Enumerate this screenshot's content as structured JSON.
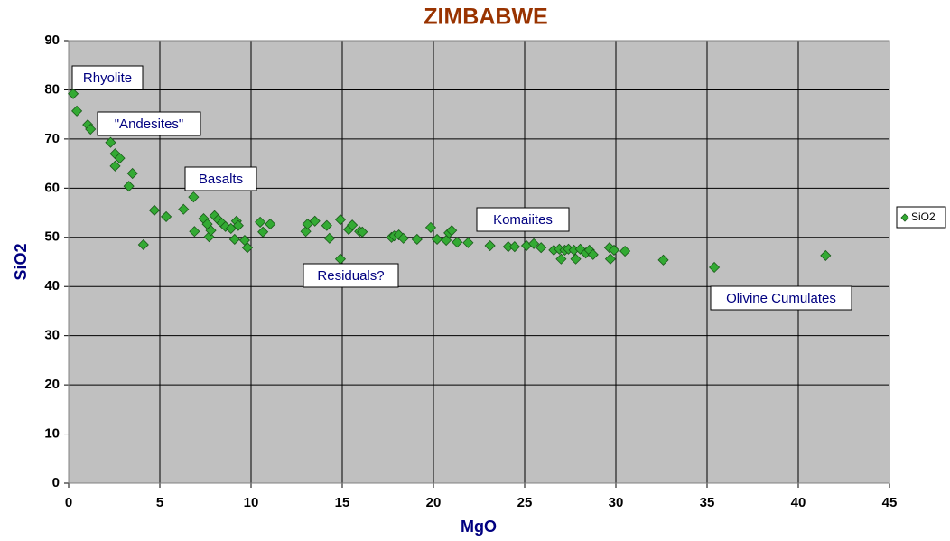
{
  "chart_data": {
    "type": "scatter",
    "title": "ZIMBABWE",
    "x_label": "MgO",
    "y_label": "SiO2",
    "x": [
      0.25,
      0.45,
      1.05,
      1.2,
      2.3,
      2.55,
      2.8,
      2.55,
      3.5,
      3.3,
      4.7,
      4.1,
      5.35,
      6.3,
      6.85,
      6.9,
      7.4,
      7.6,
      7.7,
      7.8,
      8.0,
      8.2,
      8.4,
      8.6,
      8.9,
      9.1,
      9.2,
      9.3,
      9.65,
      9.8,
      10.5,
      10.65,
      11.05,
      13.0,
      13.1,
      13.5,
      14.15,
      14.3,
      14.9,
      14.9,
      15.35,
      15.55,
      15.95,
      16.1,
      17.7,
      17.85,
      18.1,
      18.35,
      19.1,
      19.85,
      20.2,
      20.7,
      20.85,
      21.0,
      21.3,
      21.9,
      23.1,
      24.1,
      24.45,
      25.1,
      25.5,
      25.9,
      26.6,
      26.9,
      27.0,
      27.2,
      27.4,
      27.7,
      27.8,
      28.05,
      28.35,
      28.55,
      28.75,
      29.65,
      29.7,
      29.9,
      30.5,
      32.6,
      35.4,
      41.5
    ],
    "series": [
      {
        "name": "SiO2",
        "color": "#33aa33",
        "values": [
          79.2,
          75.7,
          72.9,
          72,
          69.3,
          67,
          66.1,
          64.5,
          63,
          60.4,
          55.5,
          48.5,
          54.2,
          55.7,
          58.2,
          51.2,
          53.8,
          52.7,
          50.1,
          51.4,
          54.4,
          53.6,
          52.9,
          52.2,
          51.8,
          49.6,
          53.3,
          52.4,
          49.4,
          47.9,
          53.1,
          51.1,
          52.7,
          51.2,
          52.7,
          53.3,
          52.4,
          49.8,
          53.6,
          45.6,
          51.6,
          52.5,
          51.2,
          51.1,
          50,
          50.3,
          50.5,
          49.8,
          49.6,
          52,
          49.6,
          49.4,
          50.9,
          51.4,
          49,
          48.9,
          48.3,
          48.1,
          48.1,
          48.3,
          48.7,
          47.9,
          47.4,
          47.6,
          45.6,
          47.4,
          47.6,
          47.4,
          45.6,
          47.6,
          46.8,
          47.4,
          46.5,
          47.9,
          45.6,
          47.4,
          47.2,
          45.4,
          43.9,
          46.3
        ]
      }
    ],
    "xlim": [
      0,
      45
    ],
    "xticks": [
      0,
      5,
      10,
      15,
      20,
      25,
      30,
      35,
      40,
      45
    ],
    "ylim": [
      0,
      90
    ],
    "yticks": [
      0,
      10,
      20,
      30,
      40,
      50,
      60,
      70,
      80,
      90
    ],
    "grid": true,
    "legend_position": "right",
    "annotations": [
      "Rhyolite",
      "\"Andesites\"",
      "Basalts",
      "Komaiites",
      "Residuals?",
      "Olivine Cumulates"
    ]
  }
}
